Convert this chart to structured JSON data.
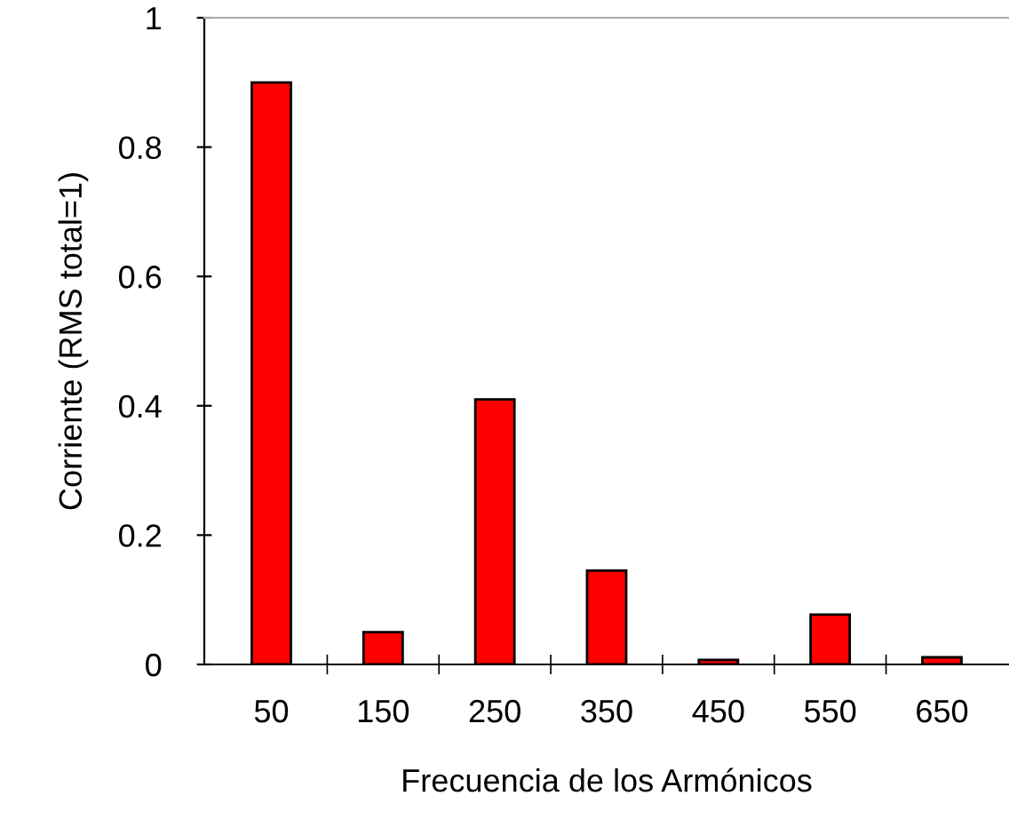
{
  "chart_data": {
    "type": "bar",
    "xlabel": "Frecuencia de los Armónicos",
    "ylabel": "Corriente (RMS total=1)",
    "categories": [
      "50",
      "150",
      "250",
      "350",
      "450",
      "550",
      "650"
    ],
    "values": [
      0.9,
      0.05,
      0.41,
      0.145,
      0.007,
      0.077,
      0.011
    ],
    "color": "#ff0000",
    "ylim": [
      0,
      1
    ],
    "yticks": [
      0,
      0.2,
      0.4,
      0.6,
      0.8,
      1
    ],
    "grid": false
  }
}
